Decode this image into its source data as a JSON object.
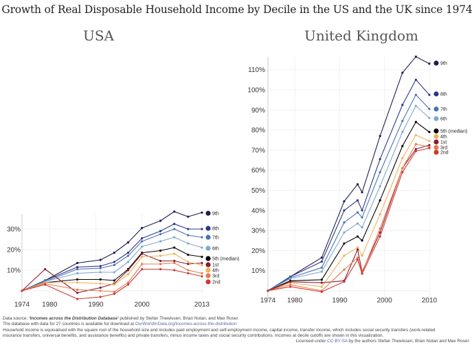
{
  "title": "Growth of Real Disposable Household Income by Decile in the US and the UK since 1974",
  "chart_data": [
    {
      "type": "line",
      "title": "USA",
      "xlabel": "",
      "ylabel": "",
      "x": [
        1974,
        1979,
        1986,
        1991,
        1994,
        1997,
        2000,
        2004,
        2007,
        2010,
        2013
      ],
      "x_ticks": [
        1974,
        1980,
        1990,
        2000,
        2013
      ],
      "x_tick_labels": [
        "1974",
        "1980",
        "1990",
        "2000",
        "2013"
      ],
      "xlim": [
        1974,
        2013
      ],
      "y_ticks": [
        10,
        20,
        30
      ],
      "y_tick_labels": [
        "10%",
        "20%",
        "30%"
      ],
      "ylim": [
        -4,
        38
      ],
      "grid": true,
      "legend": "right",
      "series": [
        {
          "name": "9th",
          "color": "#1f1d4d",
          "values": [
            0,
            5,
            13.5,
            15,
            18.5,
            23.5,
            30.5,
            34,
            38.5,
            36,
            38
          ]
        },
        {
          "name": "8th",
          "color": "#2d3589",
          "values": [
            0,
            5,
            11.5,
            12,
            14,
            18.5,
            25.5,
            29,
            32.5,
            30,
            30
          ]
        },
        {
          "name": "7th",
          "color": "#4a72b5",
          "values": [
            0,
            4.5,
            10.5,
            11,
            12.5,
            17,
            24,
            27.5,
            30,
            27,
            26
          ]
        },
        {
          "name": "6th",
          "color": "#7ea8cf",
          "values": [
            0,
            4.5,
            8.5,
            9,
            9,
            14,
            21.5,
            24,
            26,
            23,
            21
          ]
        },
        {
          "name": "5th (median)",
          "color": "#000000",
          "values": [
            0,
            4,
            5.5,
            5.5,
            5,
            10.5,
            18.5,
            19.5,
            21,
            17.5,
            16.5
          ]
        },
        {
          "name": "1st",
          "color": "#8b1a2e",
          "values": [
            0,
            10.5,
            -1,
            1.5,
            3.5,
            10,
            18,
            14.5,
            14.5,
            13,
            13.5
          ]
        },
        {
          "name": "4th",
          "color": "#f0b15a",
          "values": [
            0,
            4,
            4,
            3.5,
            3,
            8,
            16.5,
            17,
            18,
            14,
            12.5
          ]
        },
        {
          "name": "3rd",
          "color": "#e8794a",
          "values": [
            0,
            3.5,
            0.5,
            0,
            -0.5,
            4,
            13,
            13,
            13.5,
            10,
            8.5
          ]
        },
        {
          "name": "2nd",
          "color": "#d0382f",
          "values": [
            0,
            3,
            -4,
            -3,
            -1.5,
            3,
            10.5,
            10.5,
            10,
            8.5,
            7
          ]
        }
      ]
    },
    {
      "type": "line",
      "title": "United Kingdom",
      "xlabel": "",
      "ylabel": "",
      "x": [
        1974,
        1979,
        1986,
        1991,
        1994,
        1995,
        1999,
        2004,
        2007,
        2010
      ],
      "x_ticks": [
        1974,
        1980,
        1990,
        2000,
        2010
      ],
      "x_tick_labels": [
        "1974",
        "1980",
        "1990",
        "2000",
        "2010"
      ],
      "xlim": [
        1974,
        2010
      ],
      "y_ticks": [
        10,
        20,
        30,
        40,
        50,
        60,
        70,
        80,
        90,
        100,
        110
      ],
      "y_tick_labels": [
        "10%",
        "20%",
        "30%",
        "40%",
        "50%",
        "60%",
        "70%",
        "80%",
        "90%",
        "100%",
        "110%"
      ],
      "ylim": [
        -2,
        118
      ],
      "grid": true,
      "legend": "right",
      "series": [
        {
          "name": "9th",
          "color": "#1f1d4d",
          "values": [
            0,
            7,
            16.5,
            44.5,
            53,
            49,
            77,
            108.5,
            116.5,
            113
          ]
        },
        {
          "name": "8th",
          "color": "#2d3589",
          "values": [
            0,
            7,
            14.5,
            40,
            45,
            40,
            65.5,
            92.5,
            105,
            97.5
          ]
        },
        {
          "name": "7th",
          "color": "#4a72b5",
          "values": [
            0,
            6.5,
            11.5,
            34,
            39,
            36.5,
            59,
            84.5,
            97.5,
            90.5
          ]
        },
        {
          "name": "6th",
          "color": "#7ea8cf",
          "values": [
            0,
            6,
            9.5,
            29,
            33.5,
            31.5,
            52,
            79,
            92,
            86
          ]
        },
        {
          "name": "5th (median)",
          "color": "#000000",
          "values": [
            0,
            5,
            5.5,
            23.5,
            27,
            25,
            45,
            72,
            84,
            79
          ]
        },
        {
          "name": "4th",
          "color": "#f0b15a",
          "values": [
            0,
            4,
            2,
            17.5,
            21.5,
            17.5,
            38,
            66,
            77.5,
            74.5
          ]
        },
        {
          "name": "1st",
          "color": "#8b1a2e",
          "values": [
            0,
            4.5,
            4,
            5,
            20.5,
            9.5,
            29,
            61,
            70.5,
            72.5
          ]
        },
        {
          "name": "3rd",
          "color": "#e8794a",
          "values": [
            0,
            3,
            0,
            10.5,
            16.5,
            9,
            31,
            61,
            73,
            71.5
          ]
        },
        {
          "name": "2nd",
          "color": "#d0382f",
          "values": [
            0,
            2,
            -0.5,
            4.5,
            15.5,
            8.5,
            27,
            59,
            69.5,
            71
          ]
        }
      ]
    }
  ],
  "footer": {
    "line1_prefix": "Data source: ",
    "line1_source": "'Incomes across the Distribution Database'",
    "line1_suffix": " published by Stefan Thewissen, Brian Nolan, and Max Roser.",
    "line2_prefix": "The database with data for 27 countries is available for download at ",
    "line2_link": "OurWorldInData.org/incomes-across-the-distribution",
    "line3": "Household income is equivalised with the square root of the household size and includes paid employment and self-employment income, capital income, transfer income, which includes social security transfers (work-related",
    "line4": "insurance transfers, universal benefits, and assistance benefits) and private transfers, minus income taxes and social security contributions. Incomes at decile cutoffs are shown in this visualization.",
    "license_prefix": "Licensed under ",
    "license_link": "CC-BY-SA",
    "license_suffix": " by the authors Stefan Thewissen, Brian Nolan and Max Roser."
  }
}
